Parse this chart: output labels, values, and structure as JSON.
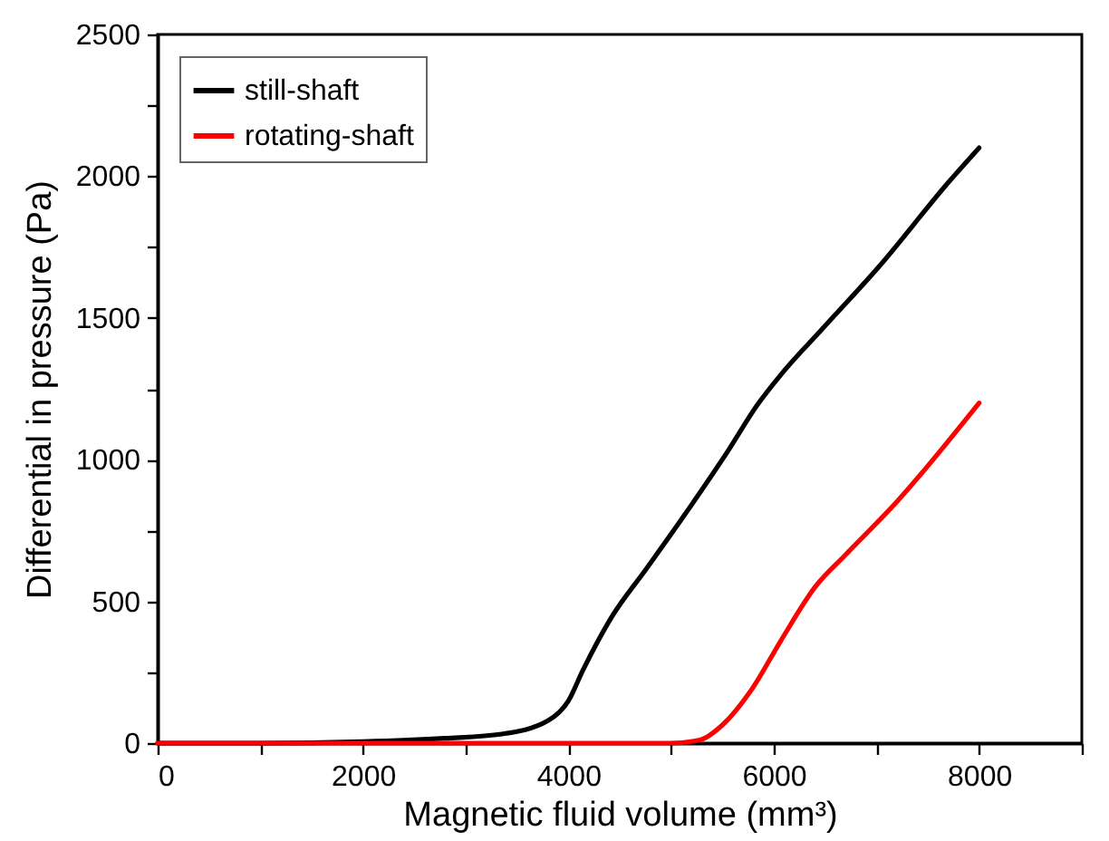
{
  "chart_data": {
    "type": "line",
    "xlabel": "Magnetic fluid volume (mm³)",
    "ylabel": "Differential in pressure (Pa)",
    "xlim": [
      0,
      9000
    ],
    "ylim": [
      0,
      2500
    ],
    "xticks": [
      0,
      {
        "value": 1000,
        "label": null
      },
      2000,
      {
        "value": 3000,
        "label": null
      },
      4000,
      {
        "value": 5000,
        "label": null
      },
      6000,
      {
        "value": 7000,
        "label": null
      },
      8000,
      {
        "value": 9000,
        "label": null
      }
    ],
    "yticks": [
      0,
      {
        "value": 250,
        "label": null
      },
      500,
      {
        "value": 750,
        "label": null
      },
      1000,
      {
        "value": 1250,
        "label": null
      },
      1500,
      {
        "value": 1750,
        "label": null
      },
      2000,
      {
        "value": 2250,
        "label": null
      },
      2500
    ],
    "legend": "top left",
    "line_style": "solid",
    "marker": "none",
    "series": [
      {
        "name": "still-shaft",
        "color": "#000000",
        "x": [
          0,
          1000,
          2000,
          2800,
          3350,
          3800,
          4000,
          4140,
          4425,
          4765,
          5160,
          5560,
          5840,
          6070,
          6470,
          7030,
          7710,
          8000
        ],
        "values": [
          0,
          0,
          5,
          17,
          32,
          79,
          149,
          256,
          447,
          618,
          820,
          1034,
          1193,
          1300,
          1460,
          1683,
          1982,
          2100
        ]
      },
      {
        "name": "rotating-shaft",
        "color": "#ff0000",
        "x": [
          0,
          1000,
          2000,
          3000,
          4000,
          5000,
          5280,
          5500,
          5790,
          6070,
          6410,
          6690,
          7200,
          8000
        ],
        "values": [
          0,
          0,
          0,
          0,
          0,
          0,
          11,
          64,
          192,
          362,
          554,
          661,
          852,
          1200
        ]
      }
    ]
  }
}
